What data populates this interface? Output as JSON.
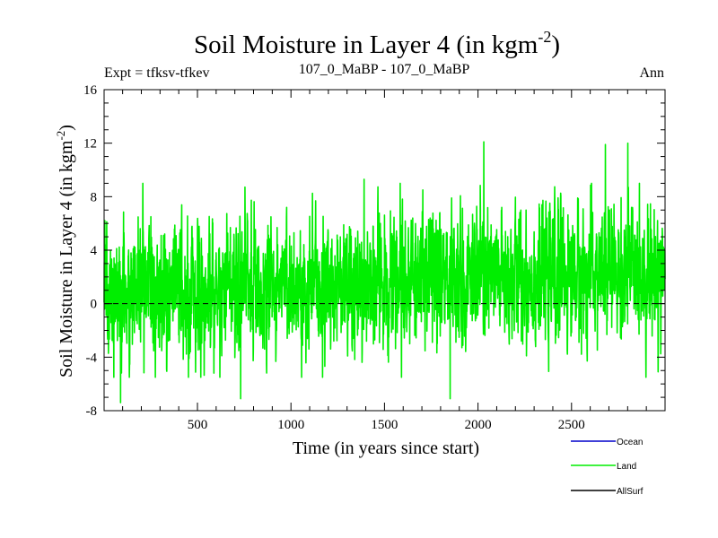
{
  "chart_data": {
    "type": "line",
    "title": "Soil Moisture in Layer 4 (in kgm",
    "title_sup": "-2",
    "title_close": ")",
    "header_left": "Expt = tfksv-tfkev",
    "header_center": "107_0_MaBP - 107_0_MaBP",
    "header_right": "Ann",
    "xlabel": "Time (in years since start)",
    "ylabel": "Soil Moisture in Layer 4 (in kgm",
    "ylabel_sup": "-2",
    "ylabel_close": ")",
    "xlim": [
      1,
      3000
    ],
    "ylim": [
      -8,
      16
    ],
    "xticks": [
      500,
      1000,
      1500,
      2000,
      2500
    ],
    "yticks": [
      -8,
      -4,
      0,
      4,
      8,
      12,
      16
    ],
    "xtick_labels": [
      "500",
      "1000",
      "1500",
      "2000",
      "2500"
    ],
    "ytick_labels": [
      "-8",
      "-4",
      "0",
      "4",
      "8",
      "12",
      "16"
    ],
    "zero_line": 0,
    "series": [
      {
        "name": "Ocean",
        "color": "#0000cc",
        "values": []
      },
      {
        "name": "Land",
        "color": "#00ee00",
        "generator": {
          "n": 3000,
          "mean_start": 0.8,
          "mean_end": 2.4,
          "sd": 2.4,
          "seed": 7
        },
        "extremes": [
          [
            88,
            -7.4
          ],
          [
            730,
            -7.1
          ],
          [
            1850,
            -7.1
          ],
          [
            2030,
            12.1
          ],
          [
            2680,
            11.9
          ],
          [
            2800,
            12.0
          ],
          [
            1390,
            9.3
          ]
        ]
      },
      {
        "name": "AllSurf",
        "color": "#000000",
        "values": []
      }
    ],
    "legend_labels": [
      "Ocean",
      "Land",
      "AllSurf"
    ]
  }
}
